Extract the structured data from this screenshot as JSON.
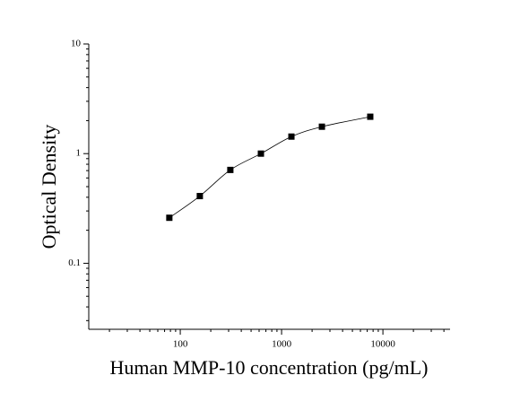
{
  "chart_data": {
    "type": "scatter",
    "x_label": "Human MMP-10 concentration (pg/mL)",
    "y_label": "Optical Density",
    "x": [
      78,
      156,
      312,
      625,
      1250,
      2500,
      7500
    ],
    "values": [
      0.26,
      0.41,
      0.71,
      1.0,
      1.43,
      1.76,
      2.17
    ],
    "color": "#000000",
    "xscale": "log",
    "yscale": "log",
    "xlim": [
      12.5,
      46000
    ],
    "ylim": [
      0.025,
      10
    ],
    "xticks": [
      100,
      1000,
      10000
    ],
    "yticks": [
      0.1,
      1,
      10
    ],
    "fit_curve": true
  }
}
